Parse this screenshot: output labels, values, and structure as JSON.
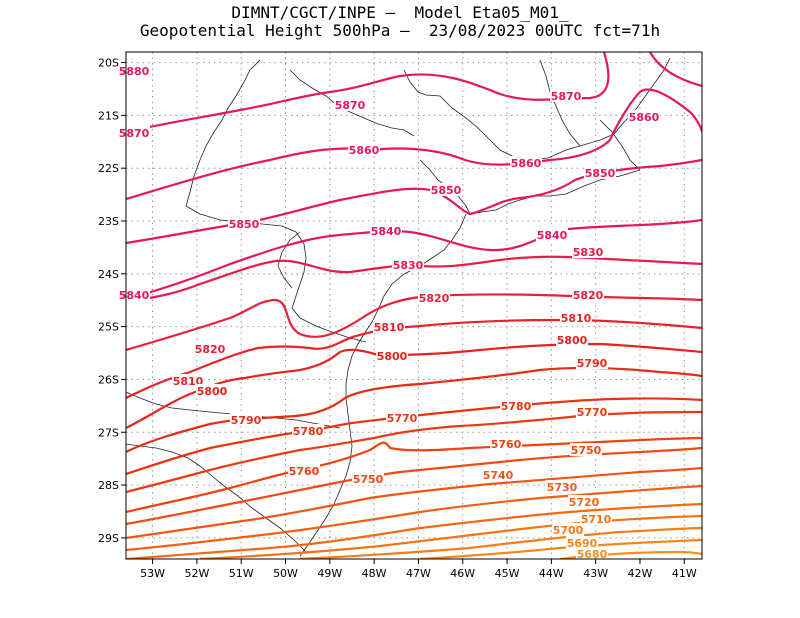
{
  "title": {
    "line1": "DIMNT/CGCT/INPE –  Model Eta05_M01_",
    "line2": "Geopotential Height 500hPa –  23/08/2023 00UTC fct=71h"
  },
  "map": {
    "lon_range": [
      -53.6,
      -40.6
    ],
    "lat_range": [
      -29.4,
      -19.8
    ],
    "lon_ticks": [
      -53,
      -52,
      -51,
      -50,
      -49,
      -48,
      -47,
      -46,
      -45,
      -44,
      -43,
      -42,
      -41
    ],
    "lon_tick_labels": [
      "53W",
      "52W",
      "51W",
      "50W",
      "49W",
      "48W",
      "47W",
      "46W",
      "45W",
      "44W",
      "43W",
      "42W",
      "41W"
    ],
    "lat_ticks": [
      -20,
      -21,
      -22,
      -23,
      -24,
      -25,
      -26,
      -27,
      -28,
      -29
    ],
    "lat_tick_labels": [
      "20S",
      "21S",
      "22S",
      "23S",
      "24S",
      "25S",
      "26S",
      "27S",
      "28S",
      "29S"
    ],
    "grid": "dotted",
    "contour_interval": 10,
    "contours": [
      {
        "value": 5880,
        "label": "5880",
        "color": "#e8175d"
      },
      {
        "value": 5870,
        "label": "5870",
        "color": "#e8175d"
      },
      {
        "value": 5860,
        "label": "5860",
        "color": "#e8175d"
      },
      {
        "value": 5850,
        "label": "5850",
        "color": "#e8175d"
      },
      {
        "value": 5840,
        "label": "5840",
        "color": "#e8175d"
      },
      {
        "value": 5830,
        "label": "5830",
        "color": "#e81c4a"
      },
      {
        "value": 5820,
        "label": "5820",
        "color": "#e8203a"
      },
      {
        "value": 5810,
        "label": "5810",
        "color": "#e8222a"
      },
      {
        "value": 5800,
        "label": "5800",
        "color": "#e8221e"
      },
      {
        "value": 5790,
        "label": "5790",
        "color": "#e82b14"
      },
      {
        "value": 5780,
        "label": "5780",
        "color": "#ea3210"
      },
      {
        "value": 5770,
        "label": "5770",
        "color": "#ec3a10"
      },
      {
        "value": 5760,
        "label": "5760",
        "color": "#ee4210"
      },
      {
        "value": 5750,
        "label": "5750",
        "color": "#f04a10"
      },
      {
        "value": 5740,
        "label": "5740",
        "color": "#f25412"
      },
      {
        "value": 5730,
        "label": "5730",
        "color": "#f45e14"
      },
      {
        "value": 5720,
        "label": "5720",
        "color": "#f56814"
      },
      {
        "value": 5710,
        "label": "5710",
        "color": "#f67216"
      },
      {
        "value": 5700,
        "label": "5700",
        "color": "#f77c18"
      },
      {
        "value": 5690,
        "label": "5690",
        "color": "#f8861a"
      },
      {
        "value": 5680,
        "label": "5680",
        "color": "#f8901c"
      }
    ]
  }
}
